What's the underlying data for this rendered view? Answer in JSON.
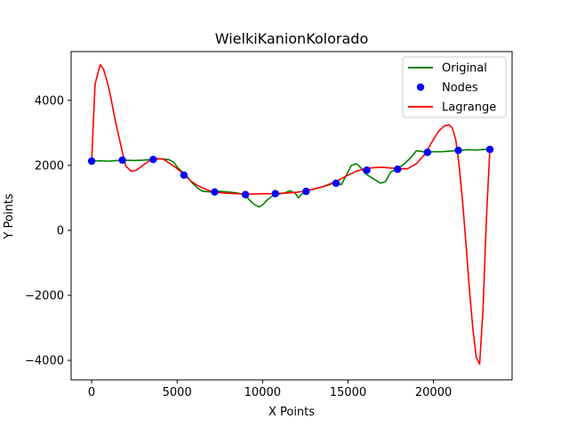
{
  "chart_data": {
    "type": "line",
    "title": "WielkiKanionKolorado",
    "xlabel": "X Points",
    "ylabel": "Y Points",
    "xlim": [
      -1200,
      24600
    ],
    "ylim": [
      -4600,
      5500
    ],
    "xticks": [
      0,
      5000,
      10000,
      15000,
      20000
    ],
    "yticks": [
      -4000,
      -2000,
      0,
      2000,
      4000
    ],
    "legend_position": "top-right",
    "grid": false,
    "series": [
      {
        "name": "Original",
        "kind": "line",
        "color": "#008000",
        "x": [
          0,
          500,
          1000,
          1500,
          2000,
          2500,
          3000,
          3500,
          4000,
          4500,
          4800,
          5000,
          5300,
          5600,
          5900,
          6200,
          6500,
          7000,
          7500,
          8000,
          8500,
          9000,
          9200,
          9500,
          9800,
          10000,
          10300,
          10700,
          11000,
          11300,
          11600,
          11900,
          12100,
          12300,
          12500,
          12800,
          13200,
          13600,
          14000,
          14300,
          14600,
          14900,
          15200,
          15500,
          15800,
          16000,
          16300,
          16600,
          16900,
          17200,
          17500,
          17900,
          18300,
          18700,
          19000,
          19300,
          19600,
          20000,
          20500,
          21000,
          21500,
          22000,
          22500,
          23000,
          23400
        ],
        "y": [
          2130,
          2140,
          2130,
          2150,
          2160,
          2150,
          2160,
          2180,
          2200,
          2180,
          2100,
          1950,
          1800,
          1650,
          1450,
          1300,
          1200,
          1180,
          1200,
          1180,
          1150,
          1100,
          950,
          800,
          720,
          780,
          950,
          1100,
          1120,
          1150,
          1220,
          1150,
          1000,
          1120,
          1200,
          1250,
          1300,
          1350,
          1420,
          1500,
          1400,
          1700,
          2000,
          2050,
          1900,
          1750,
          1650,
          1550,
          1450,
          1500,
          1800,
          1900,
          2050,
          2250,
          2450,
          2430,
          2400,
          2420,
          2420,
          2440,
          2460,
          2480,
          2470,
          2490,
          2490
        ]
      },
      {
        "name": "Nodes",
        "kind": "scatter",
        "color": "#0000ff",
        "x": [
          0,
          1800,
          3600,
          5400,
          7200,
          9000,
          10750,
          12550,
          14300,
          16100,
          17900,
          19650,
          21450,
          23300
        ],
        "y": [
          2130,
          2160,
          2180,
          1700,
          1180,
          1100,
          1130,
          1200,
          1450,
          1850,
          1880,
          2400,
          2460,
          2490
        ]
      },
      {
        "name": "Lagrange",
        "kind": "line",
        "color": "#ff0000",
        "x": [
          0,
          200,
          400,
          500,
          700,
          900,
          1100,
          1300,
          1500,
          1800,
          2000,
          2300,
          2600,
          3000,
          3400,
          3800,
          4200,
          4600,
          5000,
          5400,
          5800,
          6200,
          6600,
          7000,
          7500,
          8000,
          8500,
          9000,
          9500,
          10000,
          10500,
          11000,
          11500,
          12000,
          12500,
          13000,
          13500,
          14000,
          14500,
          15000,
          15500,
          16000,
          16500,
          17000,
          17500,
          18000,
          18500,
          19000,
          19500,
          20000,
          20300,
          20600,
          20900,
          21100,
          21300,
          21500,
          21700,
          21900,
          22100,
          22300,
          22500,
          22700,
          22900,
          23100,
          23300
        ],
        "y": [
          2130,
          4500,
          4900,
          5100,
          4950,
          4600,
          4150,
          3600,
          3100,
          2400,
          1980,
          1820,
          1850,
          2000,
          2150,
          2210,
          2190,
          2050,
          1900,
          1720,
          1520,
          1380,
          1280,
          1200,
          1160,
          1140,
          1130,
          1120,
          1120,
          1125,
          1130,
          1140,
          1150,
          1170,
          1210,
          1270,
          1340,
          1440,
          1560,
          1700,
          1820,
          1900,
          1930,
          1940,
          1920,
          1890,
          1900,
          2050,
          2350,
          2800,
          3050,
          3200,
          3250,
          3150,
          2800,
          2000,
          900,
          -400,
          -1800,
          -3000,
          -3900,
          -4120,
          -2400,
          400,
          2490
        ]
      }
    ]
  }
}
